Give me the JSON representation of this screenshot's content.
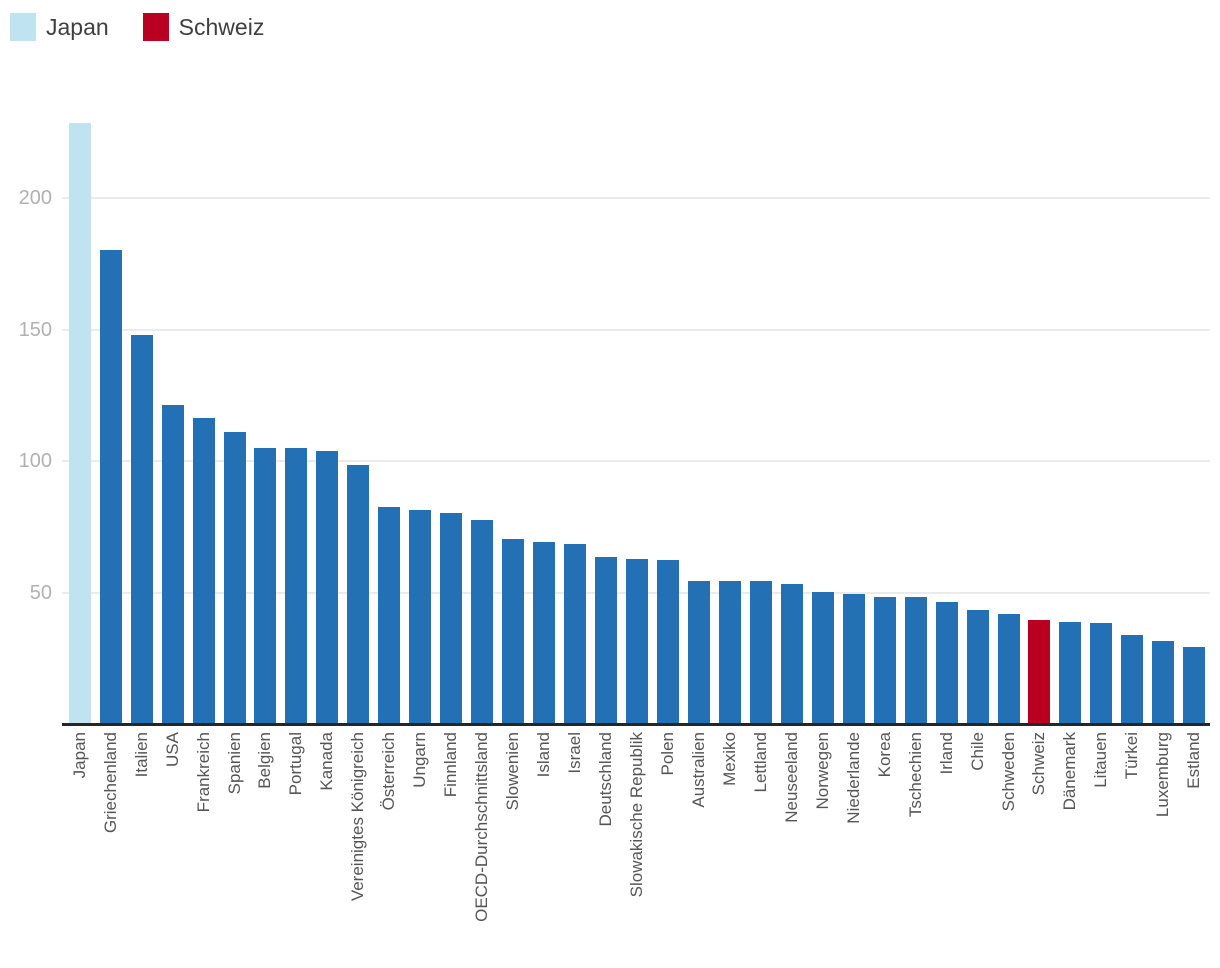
{
  "legend": {
    "items": [
      {
        "label": "Japan",
        "color": "#bfe3f1"
      },
      {
        "label": "Schweiz",
        "color": "#b90021"
      }
    ]
  },
  "colors": {
    "default_bar": "#2470b5",
    "gridline": "#ebebeb",
    "axis": "#262626",
    "y_tick_text": "#b1b1b1",
    "x_tick_text": "#555555",
    "legend_text": "#3f3f3f",
    "background": "#ffffff"
  },
  "chart_data": {
    "type": "bar",
    "title": "",
    "xlabel": "",
    "ylabel": "",
    "categories": [
      "Japan",
      "Griechenland",
      "Italien",
      "USA",
      "Frankreich",
      "Spanien",
      "Belgien",
      "Portugal",
      "Kanada",
      "Vereinigtes Königreich",
      "Österreich",
      "Ungarn",
      "Finnland",
      "OECD-Durchschnittsland",
      "Slowenien",
      "Island",
      "Israel",
      "Deutschland",
      "Slowakische Republik",
      "Polen",
      "Australien",
      "Mexiko",
      "Lettland",
      "Neuseeland",
      "Norwegen",
      "Niederlande",
      "Korea",
      "Tschechien",
      "Irland",
      "Chile",
      "Schweden",
      "Schweiz",
      "Dänemark",
      "Litauen",
      "Türkei",
      "Luxemburg",
      "Estland"
    ],
    "values": [
      228,
      180,
      147.5,
      121,
      116,
      110.5,
      104.5,
      104.5,
      103.5,
      98,
      82,
      81,
      80,
      77,
      70,
      69,
      68,
      63,
      62.5,
      62,
      54,
      54,
      54,
      53,
      50,
      49,
      48,
      48,
      46,
      43,
      41.5,
      39,
      38.5,
      38,
      33.5,
      31,
      29
    ],
    "highlight_colors": {
      "Japan": "#bfe3f1",
      "Schweiz": "#b90021"
    },
    "yticks": [
      50,
      100,
      150,
      200
    ],
    "ylim": [
      0,
      235
    ],
    "grid": true,
    "legend_position": "top-left",
    "x_label_rotation": -90
  }
}
